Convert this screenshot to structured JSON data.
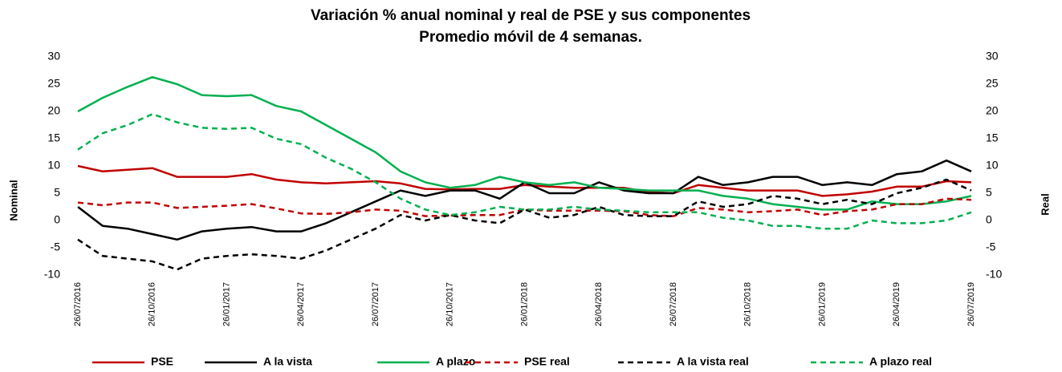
{
  "chart_data": {
    "type": "line",
    "title": "Variación % anual nominal y real de PSE y sus componentes",
    "subtitle": "Promedio móvil de 4 semanas.",
    "y_label": "Nominal",
    "y2_label": "Real",
    "categories": [
      "26/07/2016",
      null,
      null,
      "26/10/2016",
      null,
      null,
      "26/01/2017",
      null,
      null,
      "26/04/2017",
      null,
      null,
      "26/07/2017",
      null,
      null,
      "26/10/2017",
      null,
      null,
      "26/01/2018",
      null,
      null,
      "26/04/2018",
      null,
      null,
      "26/07/2018",
      null,
      null,
      "26/10/2018",
      null,
      null,
      "26/01/2019",
      null,
      null,
      "26/04/2019",
      null,
      null,
      "26/07/2019"
    ],
    "ylim": [
      -10,
      30
    ],
    "yticks": [
      -10,
      -5,
      0,
      5,
      10,
      15,
      20,
      25,
      30
    ],
    "y2lim": [
      -10,
      30
    ],
    "y2ticks": [
      -10,
      -5,
      0,
      5,
      10,
      15,
      20,
      25,
      30
    ],
    "grid": false,
    "legend": "bottom",
    "series": [
      {
        "name": "PSE",
        "color": "#c00000",
        "style": "solid",
        "values": [
          10,
          9,
          9.3,
          9.6,
          8,
          8,
          8,
          8.5,
          7.5,
          7,
          6.8,
          7,
          7.2,
          6.8,
          5.8,
          5.7,
          5.8,
          5.8,
          6.5,
          6.2,
          6,
          6,
          6,
          5.2,
          5,
          6.5,
          6,
          5.5,
          5.5,
          5.5,
          4.5,
          4.8,
          5.3,
          6.2,
          6.2,
          7.2,
          7
        ]
      },
      {
        "name": "A la vista",
        "color": "#000000",
        "style": "solid",
        "values": [
          2.5,
          -1,
          -1.5,
          -2.5,
          -3.5,
          -2,
          -1.5,
          -1.2,
          -2,
          -2,
          -0.5,
          1.5,
          3.5,
          5.5,
          4.5,
          5.5,
          5.5,
          4,
          7,
          5,
          5,
          7,
          5.5,
          5,
          5,
          8,
          6.5,
          7,
          8,
          8,
          6.5,
          7,
          6.5,
          8.5,
          9,
          11,
          9
        ]
      },
      {
        "name": "A plazo",
        "color": "#00b050",
        "style": "solid",
        "values": [
          20,
          22.5,
          24.5,
          26.3,
          25,
          23,
          22.8,
          23,
          21,
          20,
          17.5,
          15,
          12.5,
          9,
          7,
          6,
          6.5,
          8,
          7,
          6.5,
          7,
          6,
          5.8,
          5.5,
          5.5,
          5.5,
          4.5,
          4,
          3,
          2.5,
          2,
          2,
          3.5,
          3,
          3,
          3.5,
          4.5
        ]
      },
      {
        "name": "PSE real",
        "color": "#c00000",
        "style": "dashed",
        "axis": "y2",
        "values": [
          3.3,
          2.8,
          3.3,
          3.3,
          2.3,
          2.5,
          2.7,
          3,
          2.2,
          1.3,
          1.2,
          1.5,
          2,
          1.8,
          0.8,
          0.9,
          1,
          1,
          2,
          1.8,
          1.8,
          1.8,
          1.7,
          1,
          0.8,
          2.3,
          2,
          1.5,
          1.7,
          2,
          1,
          1.7,
          2,
          3,
          3,
          4,
          3.8
        ]
      },
      {
        "name": "A la vista real",
        "color": "#000000",
        "style": "dashed",
        "axis": "y2",
        "values": [
          -3.5,
          -6.5,
          -7,
          -7.5,
          -9,
          -7,
          -6.5,
          -6.2,
          -6.5,
          -7,
          -5.5,
          -3.5,
          -1.5,
          1,
          0,
          1,
          0,
          -0.5,
          2,
          0.5,
          1,
          2.5,
          1,
          0.8,
          0.8,
          3.5,
          2.5,
          3,
          4.5,
          4,
          3,
          3.8,
          3,
          5,
          6,
          7.5,
          5.5
        ]
      },
      {
        "name": "A plazo real",
        "color": "#00b050",
        "style": "dashed",
        "axis": "y2",
        "values": [
          13,
          16,
          17.5,
          19.5,
          18,
          17,
          16.8,
          17,
          15,
          14,
          11.5,
          9.5,
          7,
          4,
          2,
          1,
          1.5,
          2.5,
          2,
          2,
          2.5,
          2,
          1.8,
          1.5,
          1.5,
          1.5,
          0.5,
          0,
          -1,
          -1,
          -1.5,
          -1.5,
          0,
          -0.5,
          -0.5,
          0,
          1.5
        ]
      }
    ]
  }
}
